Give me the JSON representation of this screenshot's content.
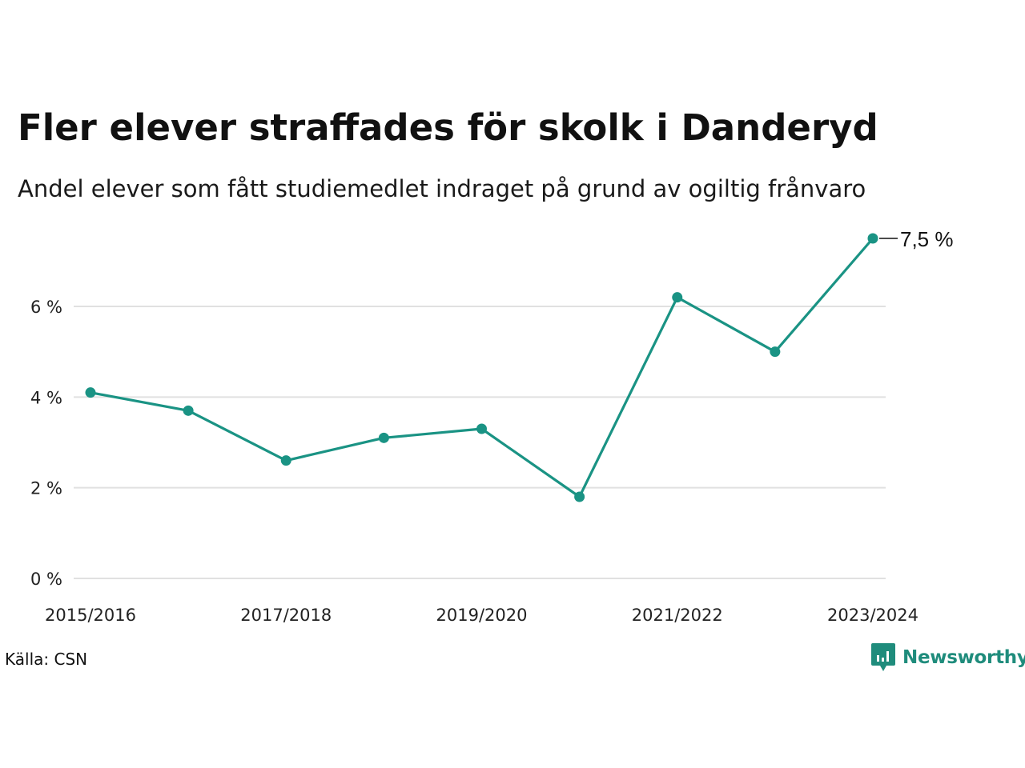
{
  "chart_data": {
    "type": "line",
    "title": "Fler elever straffades för skolk i Danderyd",
    "subtitle": "Andel elever som fått studiemedlet indraget på grund av ogiltig frånvaro",
    "x": [
      "2015/2016",
      "2016/2017",
      "2017/2018",
      "2018/2019",
      "2019/2020",
      "2020/2021",
      "2021/2022",
      "2022/2023",
      "2023/2024"
    ],
    "x_tick_labels": [
      "2015/2016",
      "2017/2018",
      "2019/2020",
      "2021/2022",
      "2023/2024"
    ],
    "series": [
      {
        "values": [
          4.1,
          3.7,
          2.6,
          3.1,
          3.3,
          1.8,
          6.2,
          5.0,
          7.5
        ],
        "color": "#1a9384"
      }
    ],
    "y_ticks": [
      0,
      2,
      4,
      6
    ],
    "y_tick_labels": [
      "0 %",
      "2 %",
      "4 %",
      "6 %"
    ],
    "ylim": [
      0,
      7.5
    ],
    "grid": true,
    "end_label": "7,5 %",
    "gridline_color": "#e1e1e1",
    "source": "Källa: CSN"
  },
  "brand": {
    "name": "Newsworthy",
    "icon": "newsworthy-logo-icon",
    "color": "#1f8c7c"
  }
}
